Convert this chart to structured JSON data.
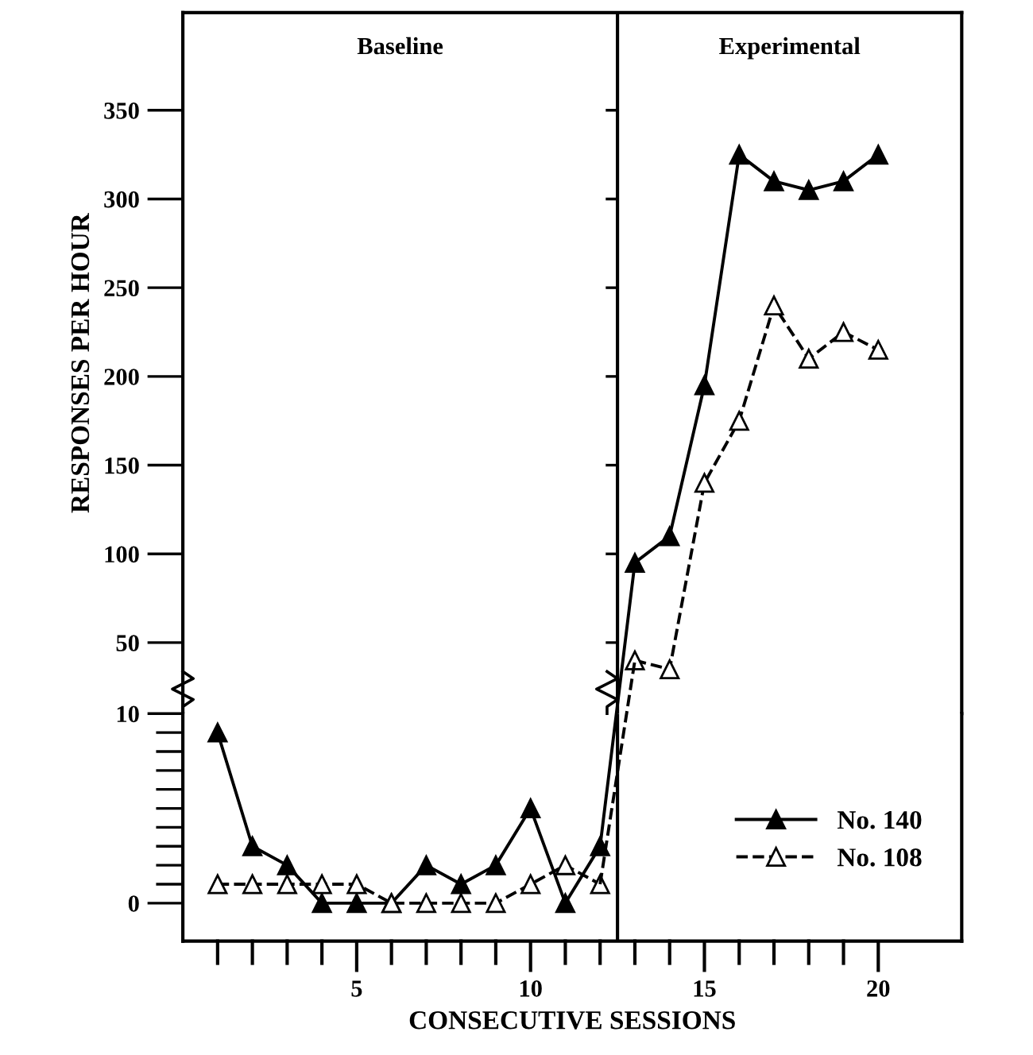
{
  "chart_data": [
    {
      "type": "line",
      "ylabel": "RESPONSES PER HOUR",
      "x": [
        13,
        14,
        15,
        16,
        17,
        18,
        19,
        20
      ],
      "series": [
        {
          "color": "#000000",
          "line_style": "solid",
          "values": [
            95,
            110,
            195,
            325,
            310,
            305,
            310,
            325
          ]
        },
        {
          "color": "#ffffff",
          "line_style": "dashed",
          "values": [
            40,
            35,
            140,
            175,
            240,
            210,
            225,
            215
          ]
        }
      ],
      "marker": "triangle",
      "xlim": [
        0,
        22.4
      ],
      "ylim": [
        10,
        405
      ],
      "yticks": [
        50,
        100,
        150,
        200,
        250,
        300,
        350
      ],
      "tick_labels": "y",
      "ref_lines": [
        {
          "axis": "x",
          "value": 12.5,
          "label": null
        }
      ],
      "annotations": [
        "Baseline",
        "Experimental"
      ],
      "grid": false
    },
    {
      "type": "line",
      "xlabel": "CONSECUTIVE SESSIONS",
      "x": [
        1,
        2,
        3,
        4,
        5,
        6,
        7,
        8,
        9,
        10,
        11,
        12
      ],
      "series": [
        {
          "name": "No. 140",
          "color": "#000000",
          "line_style": "solid",
          "values": [
            9,
            3,
            2,
            0,
            0,
            0,
            2,
            1,
            2,
            5,
            0,
            3
          ]
        },
        {
          "name": "No. 108",
          "color": "#ffffff",
          "line_style": "dashed",
          "values": [
            1,
            1,
            1,
            1,
            1,
            0,
            0,
            0,
            0,
            1,
            2,
            1
          ]
        }
      ],
      "marker": "triangle",
      "xlim": [
        0,
        22.4
      ],
      "xticks": [
        {
          "value": 1,
          "label": null
        },
        {
          "value": 2,
          "label": null
        },
        {
          "value": 3,
          "label": null
        },
        {
          "value": 4,
          "label": null
        },
        5,
        {
          "value": 6,
          "label": null
        },
        {
          "value": 7,
          "label": null
        },
        {
          "value": 8,
          "label": null
        },
        {
          "value": 9,
          "label": null
        },
        10,
        {
          "value": 11,
          "label": null
        },
        {
          "value": 12,
          "label": null
        },
        {
          "value": 13,
          "label": null
        },
        {
          "value": 14,
          "label": null
        },
        15,
        {
          "value": 16,
          "label": null
        },
        {
          "value": 17,
          "label": null
        },
        {
          "value": 18,
          "label": null
        },
        {
          "value": 19,
          "label": null
        },
        20
      ],
      "ylim": [
        -2,
        10
      ],
      "yticks": [
        0,
        {
          "value": 1,
          "label": null
        },
        {
          "value": 2,
          "label": null
        },
        {
          "value": 3,
          "label": null
        },
        {
          "value": 4,
          "label": null
        },
        {
          "value": 5,
          "label": null
        },
        {
          "value": 6,
          "label": null
        },
        {
          "value": 7,
          "label": null
        },
        {
          "value": 8,
          "label": null
        },
        {
          "value": 9,
          "label": null
        },
        10
      ],
      "ref_lines": [
        {
          "axis": "x",
          "value": 12.5,
          "label": null
        }
      ],
      "grid": false,
      "legend": "bottom right"
    }
  ]
}
